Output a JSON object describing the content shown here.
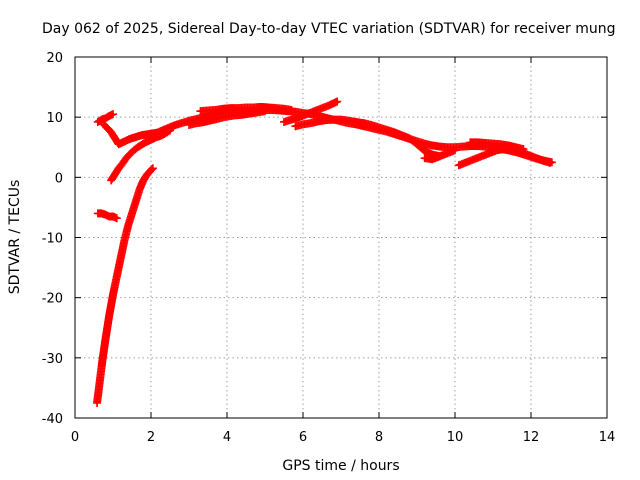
{
  "chart_data": {
    "type": "scatter",
    "title": "Day 062 of 2025, Sidereal Day-to-day VTEC variation (SDTVAR) for receiver mung",
    "xlabel": "GPS time / hours",
    "ylabel": "SDTVAR / TECUs",
    "xlim": [
      0,
      14
    ],
    "ylim": [
      -40,
      20
    ],
    "xticks": [
      0,
      2,
      4,
      6,
      8,
      10,
      12,
      14
    ],
    "yticks": [
      -40,
      -30,
      -20,
      -10,
      0,
      10,
      20
    ],
    "grid": true,
    "marker": "plus",
    "series": [
      {
        "color": "#ff0000",
        "segments": [
          {
            "x": [
              0.58,
              0.65,
              0.72,
              0.8,
              0.9,
              1.0,
              1.1,
              1.2,
              1.3,
              1.4,
              1.5,
              1.6,
              1.7,
              1.8,
              1.9,
              2.0,
              2.05
            ],
            "y": [
              -37.5,
              -34,
              -30.5,
              -27,
              -23,
              -19.5,
              -16.5,
              -13.5,
              -10.5,
              -8,
              -6,
              -4,
              -2,
              -0.5,
              0.5,
              1.2,
              1.5
            ]
          },
          {
            "x": [
              0.6,
              0.7,
              0.8,
              0.9,
              1.0,
              1.1
            ],
            "y": [
              -6,
              -6,
              -6.2,
              -6.5,
              -6.5,
              -6.8
            ]
          },
          {
            "x": [
              0.6,
              0.7,
              0.8,
              0.9,
              1.0
            ],
            "y": [
              9.2,
              9.6,
              9.8,
              10.2,
              10.5
            ]
          },
          {
            "x": [
              0.95,
              1.05,
              1.15,
              1.25,
              1.35,
              1.45,
              1.55,
              1.65,
              1.75,
              1.85,
              1.95,
              2.05,
              2.15,
              2.25,
              2.35,
              2.5
            ],
            "y": [
              -0.5,
              0.5,
              1.5,
              2.3,
              3.2,
              3.9,
              4.5,
              5.0,
              5.4,
              5.8,
              6.1,
              6.4,
              6.7,
              6.9,
              7.2,
              7.8
            ]
          },
          {
            "x": [
              0.75,
              0.85,
              0.95,
              1.05,
              1.15,
              1.25,
              1.35,
              1.45,
              1.55,
              1.65,
              1.75,
              1.85,
              1.95,
              2.05,
              2.15,
              2.3,
              2.45,
              2.6,
              2.8,
              3.0,
              3.2,
              3.4,
              3.6,
              3.8,
              4.0,
              4.2,
              4.4,
              4.6,
              4.8,
              5.0,
              5.2,
              5.4,
              5.6,
              5.8,
              6.0,
              6.2,
              6.4,
              6.6,
              6.8,
              7.0,
              7.2,
              7.4,
              7.6,
              7.8,
              8.0,
              8.2,
              8.4,
              8.6,
              8.8,
              9.0,
              9.2,
              9.4,
              9.6,
              9.8,
              10.0,
              10.2,
              10.4,
              10.6,
              10.8,
              11.0,
              11.2,
              11.4,
              11.6,
              11.8,
              12.0,
              12.2,
              12.4,
              12.55
            ],
            "y": [
              8.8,
              8.2,
              7.5,
              6.5,
              5.5,
              5.8,
              6.1,
              6.4,
              6.6,
              6.8,
              7.0,
              7.1,
              7.2,
              7.3,
              7.4,
              7.8,
              8.2,
              8.6,
              9.0,
              9.4,
              9.7,
              10.0,
              10.3,
              10.5,
              10.7,
              10.8,
              10.9,
              11.0,
              11.1,
              11.2,
              11.2,
              11.1,
              11.0,
              10.9,
              10.7,
              10.5,
              10.2,
              9.9,
              9.6,
              9.3,
              9.0,
              8.8,
              8.5,
              8.2,
              7.9,
              7.6,
              7.2,
              6.8,
              6.4,
              6.0,
              5.6,
              5.3,
              5.1,
              5.0,
              5.0,
              5.1,
              5.2,
              5.2,
              5.1,
              4.9,
              4.7,
              4.5,
              4.2,
              3.8,
              3.4,
              3.0,
              2.7,
              2.5
            ]
          },
          {
            "x": [
              3.0,
              3.2,
              3.4,
              3.6,
              3.8,
              4.0,
              4.2,
              4.4,
              4.6,
              4.8,
              5.0
            ],
            "y": [
              8.7,
              9.0,
              9.2,
              9.5,
              9.8,
              10.1,
              10.3,
              10.4,
              10.6,
              10.8,
              11.0
            ]
          },
          {
            "x": [
              3.3,
              3.5,
              3.7,
              3.9,
              4.1,
              4.3,
              4.5,
              4.7,
              4.9,
              5.1,
              5.3,
              5.5,
              5.7
            ],
            "y": [
              11.0,
              11.1,
              11.2,
              11.4,
              11.5,
              11.5,
              11.6,
              11.6,
              11.7,
              11.6,
              11.5,
              11.4,
              11.2
            ]
          },
          {
            "x": [
              5.5,
              5.7,
              5.9,
              6.1,
              6.3,
              6.5,
              6.7,
              6.9
            ],
            "y": [
              9.2,
              9.6,
              10.0,
              10.5,
              11.0,
              11.5,
              12.0,
              12.6
            ]
          },
          {
            "x": [
              5.8,
              6.0,
              6.2,
              6.4,
              6.6,
              6.8,
              7.0,
              7.2,
              7.4,
              7.6,
              7.8,
              8.0,
              8.2,
              8.4,
              8.6,
              8.8,
              9.0,
              9.2,
              9.4,
              9.6
            ],
            "y": [
              8.5,
              8.8,
              9.0,
              9.3,
              9.5,
              9.6,
              9.6,
              9.4,
              9.2,
              9.0,
              8.7,
              8.3,
              7.9,
              7.5,
              7.0,
              6.5,
              5.5,
              4.4,
              3.8,
              3.5
            ]
          },
          {
            "x": [
              9.2,
              9.4,
              9.6,
              9.8,
              10.0
            ],
            "y": [
              3.2,
              3.0,
              3.5,
              4.0,
              4.5
            ]
          },
          {
            "x": [
              10.1,
              10.3,
              10.5,
              10.7,
              10.9,
              11.1,
              11.3,
              11.5,
              11.7,
              11.9,
              12.1,
              12.3,
              12.5
            ],
            "y": [
              2.0,
              2.5,
              3.0,
              3.5,
              4.0,
              4.5,
              4.7,
              4.6,
              4.3,
              3.8,
              3.3,
              2.8,
              2.4
            ]
          },
          {
            "x": [
              10.4,
              10.6,
              10.8,
              11.0,
              11.2,
              11.4,
              11.6,
              11.8
            ],
            "y": [
              5.8,
              5.8,
              5.7,
              5.6,
              5.5,
              5.3,
              5.0,
              4.7
            ]
          }
        ]
      }
    ]
  }
}
